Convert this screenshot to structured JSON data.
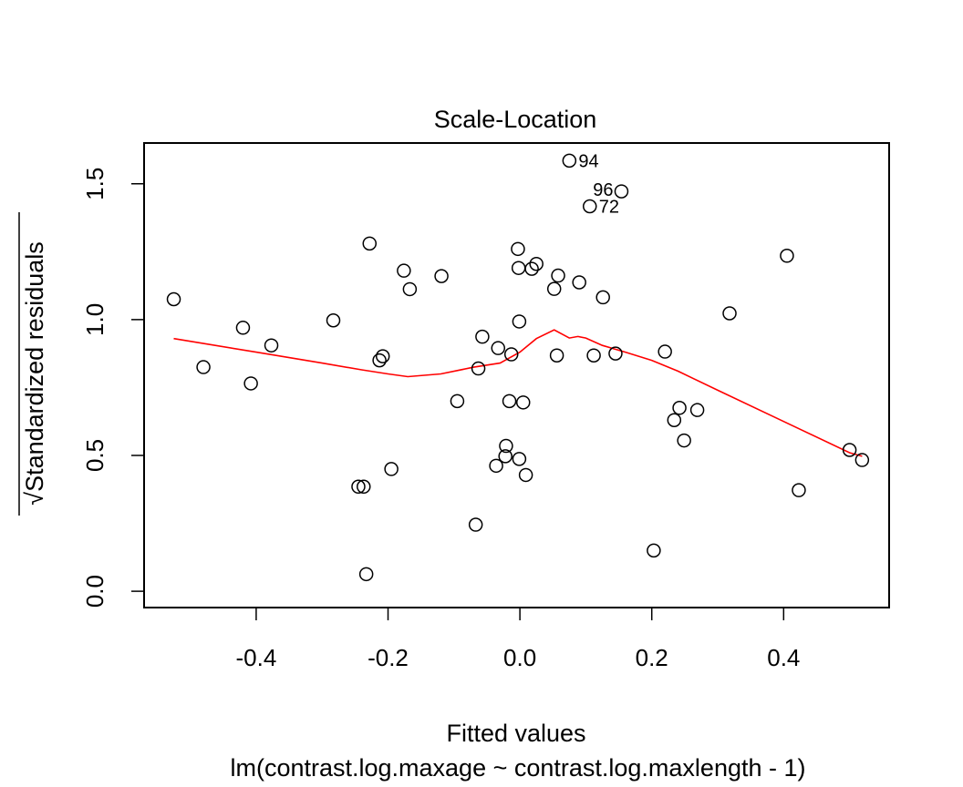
{
  "chart_data": {
    "type": "scatter",
    "title": "Scale-Location",
    "xlabel": "Fitted values",
    "ylabel": "Standardized residuals",
    "ylabel_prefix": "√",
    "sublabel": "lm(contrast.log.maxage ~ contrast.log.maxlength - 1)",
    "xlim": [
      -0.57,
      0.56
    ],
    "ylim": [
      -0.06,
      1.65
    ],
    "x_ticks": [
      -0.4,
      -0.2,
      0.0,
      0.2,
      0.4
    ],
    "x_tick_labels": [
      "-0.4",
      "-0.2",
      "0.0",
      "0.2",
      "0.4"
    ],
    "y_ticks": [
      0.0,
      0.5,
      1.0,
      1.5
    ],
    "y_tick_labels": [
      "0.0",
      "0.5",
      "1.0",
      "1.5"
    ],
    "grid": false,
    "point_color": "#000000",
    "smooth_color": "#ff0000",
    "points": [
      {
        "x": -0.525,
        "y": 1.075
      },
      {
        "x": -0.48,
        "y": 0.825
      },
      {
        "x": -0.42,
        "y": 0.97
      },
      {
        "x": -0.408,
        "y": 0.765
      },
      {
        "x": -0.377,
        "y": 0.905
      },
      {
        "x": -0.283,
        "y": 0.997
      },
      {
        "x": -0.245,
        "y": 0.385
      },
      {
        "x": -0.237,
        "y": 0.385
      },
      {
        "x": -0.233,
        "y": 0.063
      },
      {
        "x": -0.228,
        "y": 1.28
      },
      {
        "x": -0.213,
        "y": 0.85
      },
      {
        "x": -0.208,
        "y": 0.865
      },
      {
        "x": -0.195,
        "y": 0.45
      },
      {
        "x": -0.176,
        "y": 1.18
      },
      {
        "x": -0.167,
        "y": 1.112
      },
      {
        "x": -0.119,
        "y": 1.16
      },
      {
        "x": -0.095,
        "y": 0.7
      },
      {
        "x": -0.067,
        "y": 0.245
      },
      {
        "x": -0.063,
        "y": 0.82
      },
      {
        "x": -0.057,
        "y": 0.937
      },
      {
        "x": -0.036,
        "y": 0.462
      },
      {
        "x": -0.033,
        "y": 0.895
      },
      {
        "x": -0.022,
        "y": 0.497
      },
      {
        "x": -0.021,
        "y": 0.535
      },
      {
        "x": -0.016,
        "y": 0.7
      },
      {
        "x": -0.013,
        "y": 0.872
      },
      {
        "x": -0.003,
        "y": 1.26
      },
      {
        "x": -0.002,
        "y": 1.19
      },
      {
        "x": -0.001,
        "y": 0.993
      },
      {
        "x": -0.001,
        "y": 0.487
      },
      {
        "x": 0.005,
        "y": 0.695
      },
      {
        "x": 0.009,
        "y": 0.428
      },
      {
        "x": 0.018,
        "y": 1.187
      },
      {
        "x": 0.025,
        "y": 1.205
      },
      {
        "x": 0.052,
        "y": 1.113
      },
      {
        "x": 0.056,
        "y": 0.868
      },
      {
        "x": 0.058,
        "y": 1.162
      },
      {
        "x": 0.075,
        "y": 1.585,
        "label": "94"
      },
      {
        "x": 0.09,
        "y": 1.137
      },
      {
        "x": 0.106,
        "y": 1.417,
        "label": "72"
      },
      {
        "x": 0.112,
        "y": 0.868
      },
      {
        "x": 0.126,
        "y": 1.082
      },
      {
        "x": 0.145,
        "y": 0.875
      },
      {
        "x": 0.154,
        "y": 1.472,
        "label": "96"
      },
      {
        "x": 0.203,
        "y": 0.15
      },
      {
        "x": 0.22,
        "y": 0.882
      },
      {
        "x": 0.234,
        "y": 0.63
      },
      {
        "x": 0.242,
        "y": 0.675
      },
      {
        "x": 0.249,
        "y": 0.555
      },
      {
        "x": 0.269,
        "y": 0.667
      },
      {
        "x": 0.318,
        "y": 1.023
      },
      {
        "x": 0.405,
        "y": 1.235
      },
      {
        "x": 0.423,
        "y": 0.372
      },
      {
        "x": 0.5,
        "y": 0.52
      },
      {
        "x": 0.519,
        "y": 0.483
      }
    ],
    "smooth_line": [
      [
        -0.525,
        0.93
      ],
      [
        -0.4,
        0.88
      ],
      [
        -0.3,
        0.84
      ],
      [
        -0.24,
        0.815
      ],
      [
        -0.2,
        0.8
      ],
      [
        -0.17,
        0.79
      ],
      [
        -0.12,
        0.8
      ],
      [
        -0.07,
        0.825
      ],
      [
        -0.03,
        0.84
      ],
      [
        0.0,
        0.88
      ],
      [
        0.025,
        0.93
      ],
      [
        0.052,
        0.962
      ],
      [
        0.075,
        0.932
      ],
      [
        0.088,
        0.938
      ],
      [
        0.1,
        0.932
      ],
      [
        0.125,
        0.905
      ],
      [
        0.16,
        0.88
      ],
      [
        0.2,
        0.85
      ],
      [
        0.24,
        0.81
      ],
      [
        0.3,
        0.74
      ],
      [
        0.4,
        0.625
      ],
      [
        0.5,
        0.51
      ],
      [
        0.519,
        0.497
      ]
    ]
  }
}
